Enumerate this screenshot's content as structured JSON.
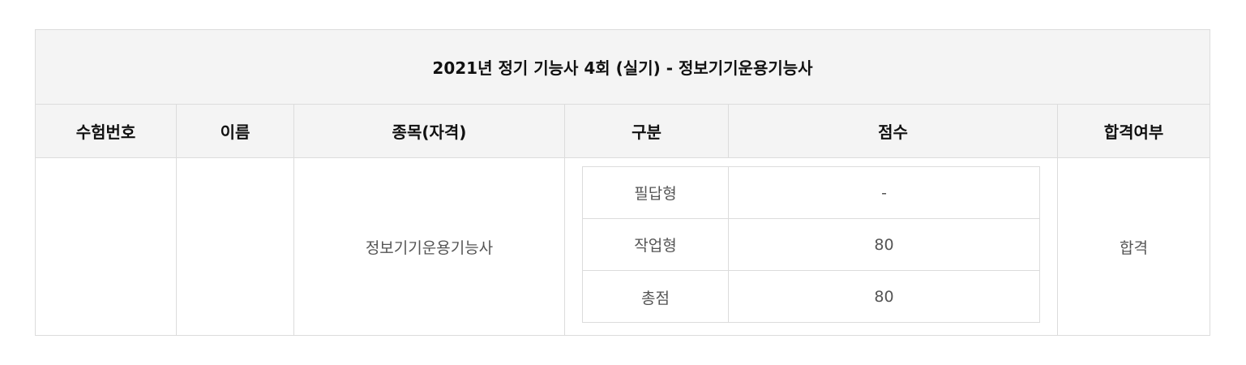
{
  "table": {
    "title": "2021년 정기 기능사 4회 (실기) - 정보기기운용기능사",
    "headers": {
      "exam_number": "수험번호",
      "name": "이름",
      "subject": "종목(자격)",
      "category": "구분",
      "score": "점수",
      "pass_status": "합격여부"
    },
    "row": {
      "exam_number": "",
      "name": "",
      "subject": "정보기기운용기능사",
      "scores": [
        {
          "category": "필답형",
          "score": "-"
        },
        {
          "category": "작업형",
          "score": "80"
        },
        {
          "category": "총점",
          "score": "80"
        }
      ],
      "pass_status": "합격"
    }
  }
}
